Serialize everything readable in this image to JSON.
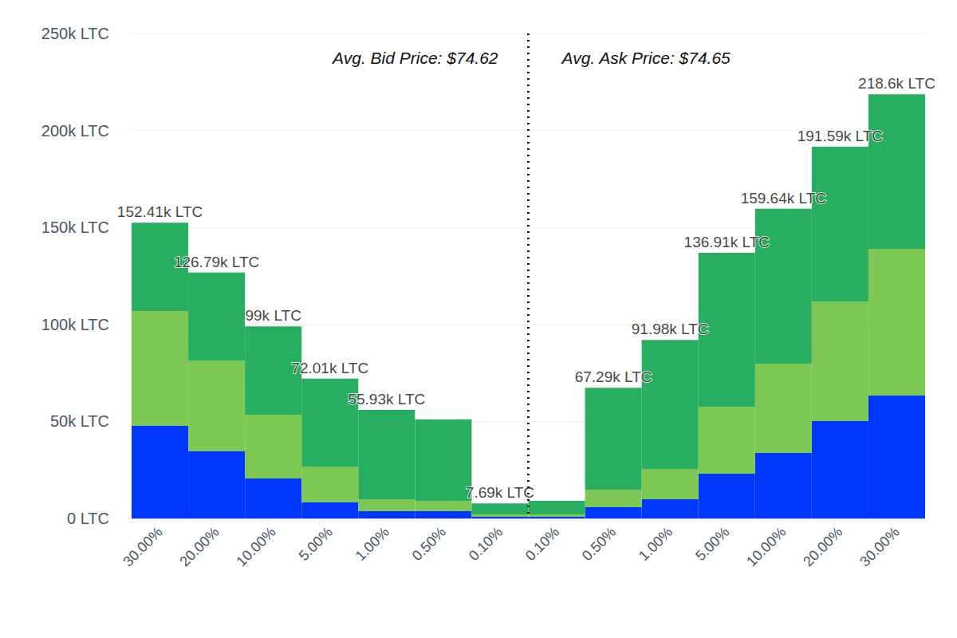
{
  "chart_data": {
    "type": "bar",
    "stacked": true,
    "grid": true,
    "data_labels": false,
    "categories": [
      "30.00%",
      "20.00%",
      "10.00%",
      "5.00%",
      "1.00%",
      "0.50%",
      "0.10%",
      "0.10%",
      "0.50%",
      "1.00%",
      "5.00%",
      "10.00%",
      "20.00%",
      "30.00%"
    ],
    "series": [
      {
        "color": "#0037ff",
        "values": [
          47700,
          34500,
          20600,
          8200,
          3700,
          3700,
          800,
          800,
          5800,
          9900,
          23000,
          33700,
          50200,
          63300
        ]
      },
      {
        "color": "#7dc855",
        "values": [
          59200,
          46900,
          32900,
          18500,
          6200,
          5300,
          1300,
          1300,
          9000,
          15600,
          34600,
          46100,
          61600,
          75700
        ]
      },
      {
        "color": "#27ae60",
        "values": [
          45510,
          45390,
          45500,
          45310,
          46030,
          42000,
          5590,
          6900,
          52490,
          66480,
          79310,
          79840,
          79790,
          79600
        ]
      }
    ],
    "totals": [
      152410,
      126790,
      99000,
      72010,
      55930,
      null,
      7690,
      null,
      67290,
      91980,
      136910,
      159640,
      191590,
      218600
    ],
    "total_labels": [
      "152.41k LTC",
      "126.79k LTC",
      "99k LTC",
      "72.01k LTC",
      "55.93k LTC",
      null,
      "7.69k LTC",
      null,
      "67.29k LTC",
      "91.98k LTC",
      "136.91k LTC",
      "159.64k LTC",
      "191.59k LTC",
      "218.6k LTC"
    ],
    "annotations": [
      "Avg. Bid Price: $74.62",
      "Avg. Ask Price: $74.65"
    ],
    "ylim": [
      0,
      250000
    ],
    "yticks": [
      {
        "value": 0,
        "label": "0 LTC"
      },
      {
        "value": 50000,
        "label": "50k LTC"
      },
      {
        "value": 100000,
        "label": "100k LTC"
      },
      {
        "value": 150000,
        "label": "150k LTC"
      },
      {
        "value": 200000,
        "label": "200k LTC"
      },
      {
        "value": 250000,
        "label": "250k LTC"
      }
    ]
  }
}
